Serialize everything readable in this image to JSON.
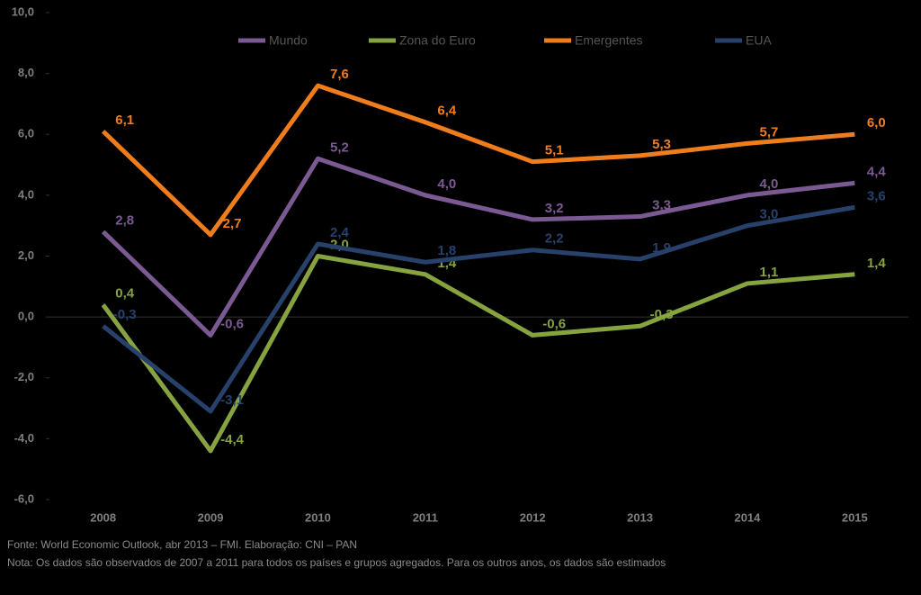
{
  "chart_data": {
    "type": "line",
    "categories": [
      "2008",
      "2009",
      "2010",
      "2011",
      "2012",
      "2013",
      "2014",
      "2015"
    ],
    "series": [
      {
        "name": "Mundo",
        "color": "#7b5a93",
        "values": [
          2.8,
          -0.6,
          5.2,
          4.0,
          3.2,
          3.3,
          4.0,
          4.4
        ],
        "value_labels": [
          "2,8",
          "-0,6",
          "5,2",
          "4,0",
          "3,2",
          "3,3",
          "4,0",
          "4,4"
        ]
      },
      {
        "name": "Zona do Euro",
        "color": "#86a33f",
        "values": [
          0.4,
          -4.4,
          2.0,
          1.4,
          -0.6,
          -0.3,
          1.1,
          1.4
        ],
        "value_labels": [
          "0,4",
          "-4,4",
          "2,0",
          "1,4",
          "-0,6",
          "-0,3",
          "1,1",
          "1,4"
        ]
      },
      {
        "name": "Emergentes",
        "color": "#f07d1c",
        "values": [
          6.1,
          2.7,
          7.6,
          6.4,
          5.1,
          5.3,
          5.7,
          6.0
        ],
        "value_labels": [
          "6,1",
          "2,7",
          "7,6",
          "6,4",
          "5,1",
          "5,3",
          "5,7",
          "6,0"
        ]
      },
      {
        "name": "EUA",
        "color": "#27416b",
        "values": [
          -0.3,
          -3.1,
          2.4,
          1.8,
          2.2,
          1.9,
          3.0,
          3.6
        ],
        "value_labels": [
          "-0,3",
          "-3,1",
          "2,4",
          "1,8",
          "2,2",
          "1,9",
          "3,0",
          "3,6"
        ]
      }
    ],
    "ylim": [
      -6,
      10
    ],
    "yticks": [
      {
        "value": -6,
        "label": "-6,0"
      },
      {
        "value": -4,
        "label": "-4,0"
      },
      {
        "value": -2,
        "label": "-2,0"
      },
      {
        "value": 0,
        "label": "0,0"
      },
      {
        "value": 2,
        "label": "2,0"
      },
      {
        "value": 4,
        "label": "4,0"
      },
      {
        "value": 6,
        "label": "6,0"
      },
      {
        "value": 8,
        "label": "8,0"
      },
      {
        "value": 10,
        "label": "10,0"
      }
    ],
    "source": "Fonte: World Economic Outlook, abr 2013 – FMI. Elaboração: CNI – PAN",
    "note": "Nota: Os dados são observados de 2007 a 2011 para todos os países e grupos agregados. Para os outros anos, os dados são estimados"
  }
}
